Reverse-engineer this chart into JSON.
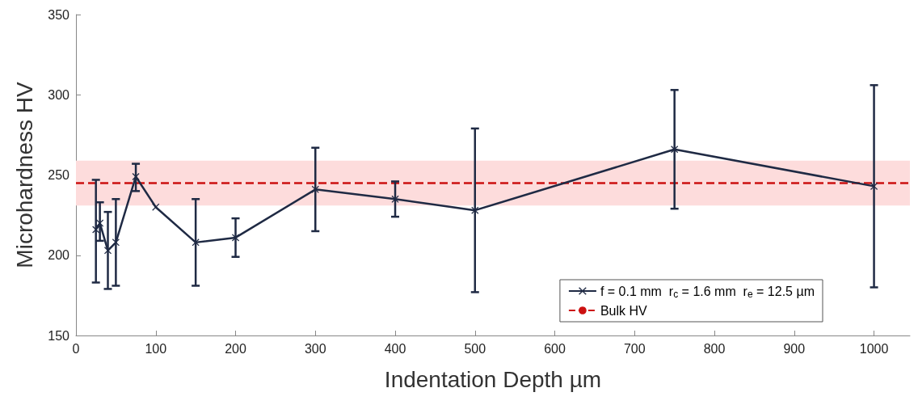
{
  "chart_data": {
    "type": "line",
    "xlabel": "Indentation Depth µm",
    "ylabel": "Microhardness HV",
    "x": [
      25,
      30,
      40,
      50,
      75,
      100,
      150,
      200,
      300,
      400,
      500,
      750,
      1000
    ],
    "series": [
      {
        "name": "f = 0.1 mm  r$_{c}$ = 1.6 mm  r$_{e}$ = 12.5 µm",
        "color": "#1f2a44",
        "values": [
          216,
          220,
          203,
          208,
          249,
          230,
          208,
          211,
          241,
          235,
          228,
          266,
          243
        ],
        "errors": [
          [
            183,
            247
          ],
          [
            209,
            233
          ],
          [
            179,
            227
          ],
          [
            181,
            235
          ],
          [
            240,
            257
          ],
          null,
          [
            181,
            235
          ],
          [
            199,
            223
          ],
          [
            215,
            267
          ],
          [
            224,
            246
          ],
          [
            177,
            279
          ],
          [
            229,
            303
          ],
          [
            180,
            306
          ]
        ]
      }
    ],
    "xlim": [
      0,
      1045
    ],
    "xticks": [
      0,
      100,
      200,
      300,
      400,
      500,
      600,
      700,
      800,
      900,
      1000
    ],
    "ylim": [
      150,
      350
    ],
    "yticks": [
      150,
      200,
      250,
      300,
      350
    ],
    "ref_lines": [
      {
        "axis": "y",
        "value": 245,
        "label": "Bulk HV",
        "color": "#cc1111",
        "line_style": "dashed"
      }
    ],
    "bands": [
      {
        "axis": "y",
        "from": 231,
        "to": 259,
        "color": "#fddcdc"
      }
    ],
    "marker": "cross",
    "line_style": "solid",
    "grid": false,
    "legend": "bottom right"
  }
}
